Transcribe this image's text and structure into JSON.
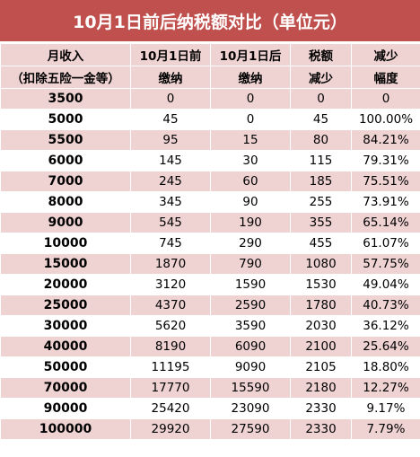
{
  "title": "10月1日前后纳税额对比（单位元）",
  "headers": {
    "row1": [
      "月收入",
      "10月1日前",
      "10月1日后",
      "税额",
      "减少"
    ],
    "row2": [
      "（扣除五险一金等）",
      "缴纳",
      "缴纳",
      "减少",
      "幅度"
    ]
  },
  "rows": [
    [
      "3500",
      "0",
      "0",
      "0",
      "0"
    ],
    [
      "5000",
      "45",
      "0",
      "45",
      "100.00%"
    ],
    [
      "5500",
      "95",
      "15",
      "80",
      "84.21%"
    ],
    [
      "6000",
      "145",
      "30",
      "115",
      "79.31%"
    ],
    [
      "7000",
      "245",
      "60",
      "185",
      "75.51%"
    ],
    [
      "8000",
      "345",
      "90",
      "255",
      "73.91%"
    ],
    [
      "9000",
      "545",
      "190",
      "355",
      "65.14%"
    ],
    [
      "10000",
      "745",
      "290",
      "455",
      "61.07%"
    ],
    [
      "15000",
      "1870",
      "790",
      "1080",
      "57.75%"
    ],
    [
      "20000",
      "3120",
      "1590",
      "1530",
      "49.04%"
    ],
    [
      "25000",
      "4370",
      "2590",
      "1780",
      "40.73%"
    ],
    [
      "30000",
      "5620",
      "3590",
      "2030",
      "36.12%"
    ],
    [
      "40000",
      "8190",
      "6090",
      "2100",
      "25.64%"
    ],
    [
      "50000",
      "11195",
      "9090",
      "2105",
      "18.80%"
    ],
    [
      "70000",
      "17770",
      "15590",
      "2180",
      "12.27%"
    ],
    [
      "90000",
      "25420",
      "23090",
      "2330",
      "9.17%"
    ],
    [
      "100000",
      "29920",
      "27590",
      "2330",
      "7.79%"
    ]
  ]
}
